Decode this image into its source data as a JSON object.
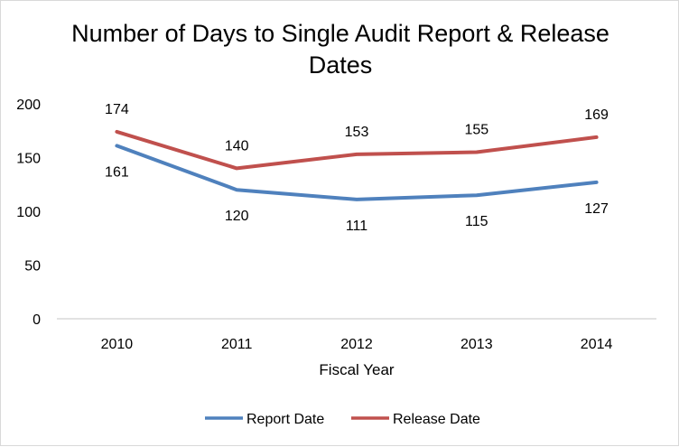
{
  "chart_data": {
    "type": "line",
    "title_lines": [
      "Number of Days to Single Audit Report & Release",
      "Dates"
    ],
    "xlabel": "Fiscal Year",
    "ylabel": "",
    "categories": [
      "2010",
      "2011",
      "2012",
      "2013",
      "2014"
    ],
    "ylim": [
      0,
      200
    ],
    "yticks": [
      0,
      50,
      100,
      150,
      200
    ],
    "grid": false,
    "legend_position": "bottom",
    "series": [
      {
        "name": "Report Date",
        "values": [
          161,
          120,
          111,
          115,
          127
        ],
        "color": "#4f81bd",
        "label_side": "below"
      },
      {
        "name": "Release Date",
        "values": [
          174,
          140,
          153,
          155,
          169
        ],
        "color": "#c0504d",
        "label_side": "above"
      }
    ]
  }
}
